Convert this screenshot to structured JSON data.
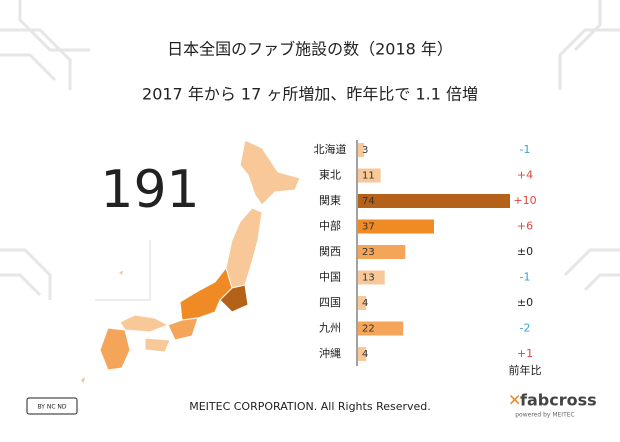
{
  "chart_data": {
    "type": "bar",
    "title": "日本全国のファブ施設の数（2018 年）",
    "subtitle": "2017 年から 17 ヶ所増加、昨年比で 1.1 倍増",
    "total": 191,
    "categories": [
      "北海道",
      "東北",
      "関東",
      "中部",
      "関西",
      "中国",
      "四国",
      "九州",
      "沖縄"
    ],
    "values": [
      3,
      11,
      74,
      37,
      23,
      13,
      4,
      22,
      4
    ],
    "colors": [
      "#f8c898",
      "#f8c898",
      "#b4621a",
      "#f08a24",
      "#f4a55a",
      "#f8c898",
      "#f8c898",
      "#f4a55a",
      "#f8c898"
    ],
    "change_label": "前年比",
    "changes": [
      -1,
      4,
      10,
      6,
      0,
      -1,
      0,
      -2,
      1
    ],
    "change_value_labels": [
      "-1",
      "+4",
      "+10",
      "+6",
      "±0",
      "-1",
      "±0",
      "-2",
      "+1"
    ],
    "footer": "MEITEC CORPORATION. All Rights Reserved.",
    "logo": "fabcross",
    "logo_sub": "powered by MEITEC",
    "license": "BY NC ND"
  }
}
